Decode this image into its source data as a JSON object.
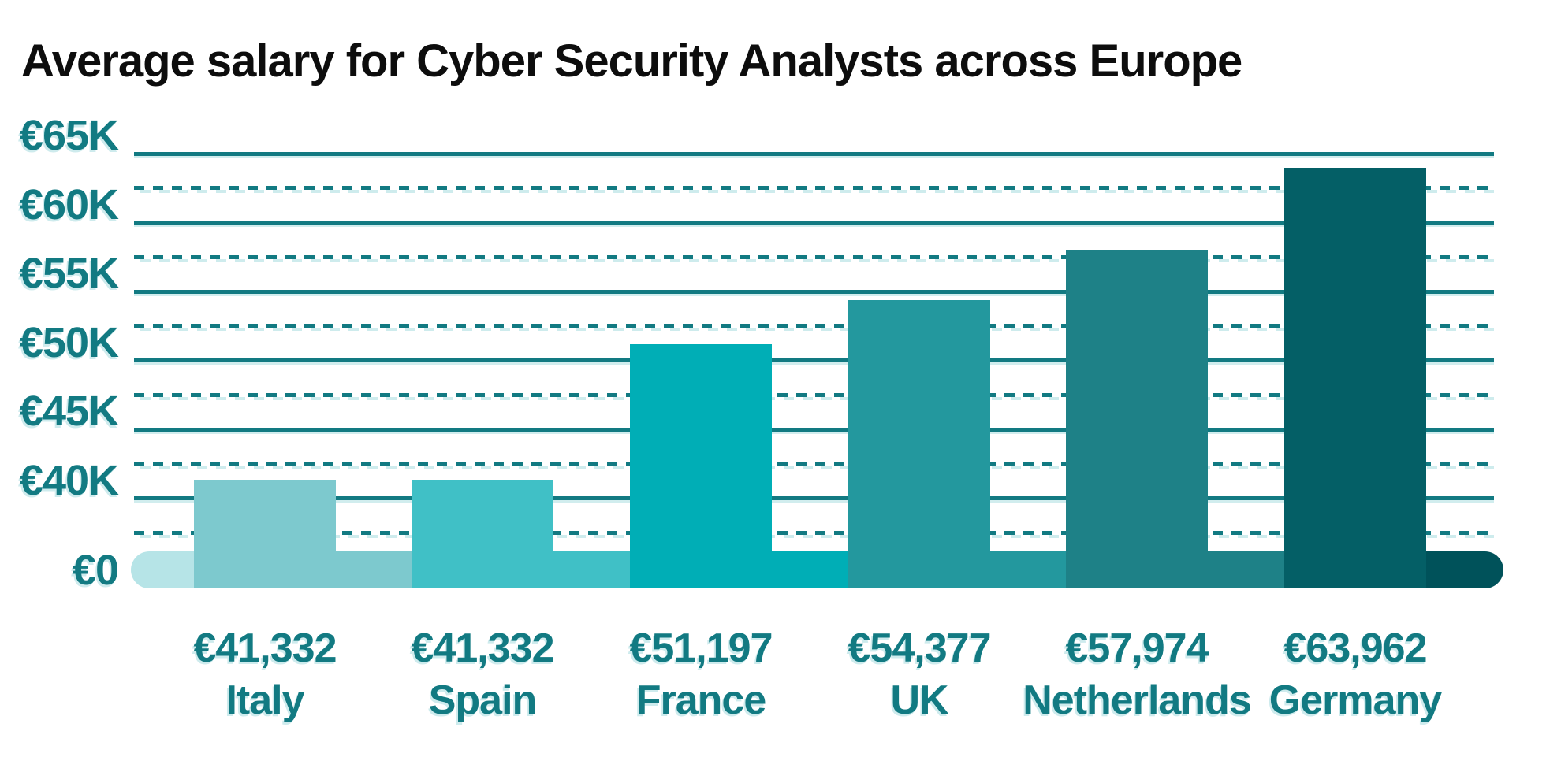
{
  "title": "Average salary for Cyber Security Analysts across Europe",
  "colors": {
    "background": "#ffffff",
    "title_text": "#0d0d0d",
    "axis_teal": "#127a82",
    "grid_shadow": "#c9e9eb",
    "baseline_cap_left": "#b6e4e7",
    "baseline_cap_right": "#00525a"
  },
  "chart_data": {
    "type": "bar",
    "title": "Average salary for Cyber Security Analysts across Europe",
    "currency": "EUR",
    "categories": [
      "Italy",
      "Spain",
      "France",
      "UK",
      "Netherlands",
      "Germany"
    ],
    "values": [
      41332,
      41332,
      51197,
      54377,
      57974,
      63962
    ],
    "value_labels": [
      "€41,332",
      "€41,332",
      "€51,197",
      "€54,377",
      "€57,974",
      "€63,962"
    ],
    "bar_colors": [
      "#7dc9ce",
      "#40c0c6",
      "#00aeb6",
      "#23989e",
      "#1e8187",
      "#045f66"
    ],
    "xlabel": "",
    "ylabel": "",
    "y_axis": {
      "ticks": [
        {
          "label": "€65K",
          "value": 65000
        },
        {
          "label": "€60K",
          "value": 60000
        },
        {
          "label": "€55K",
          "value": 55000
        },
        {
          "label": "€50K",
          "value": 50000
        },
        {
          "label": "€45K",
          "value": 45000
        },
        {
          "label": "€40K",
          "value": 40000
        },
        {
          "label": "€0",
          "value": 0
        }
      ],
      "ylim": [
        0,
        65000
      ],
      "broken_axis": true,
      "grid": {
        "solid_at_labeled_ticks": true,
        "dashed_midway_between_ticks": true
      }
    },
    "legend": null,
    "baseline_bar": {
      "description": "rounded pill at €0 baseline colored as a light-to-dark teal ramp matching each bar",
      "cap_left_color": "#b6e4e7",
      "cap_right_color": "#00525a"
    }
  }
}
